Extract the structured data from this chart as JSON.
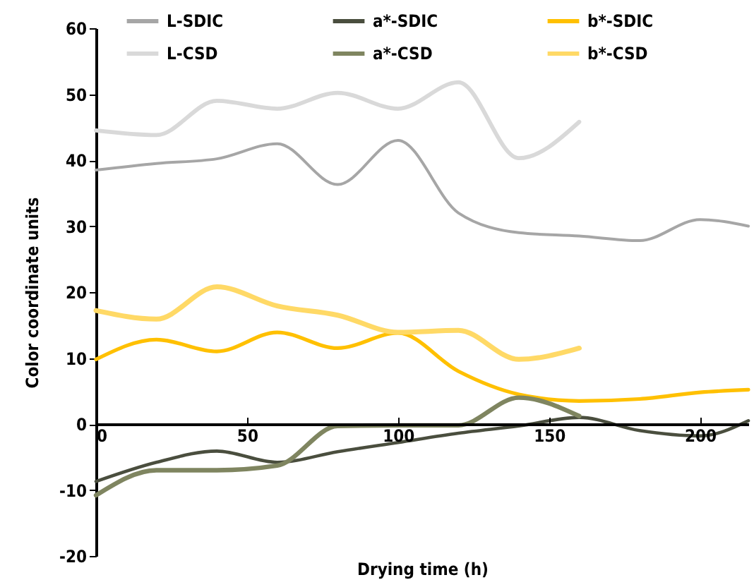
{
  "chart_data": {
    "type": "line",
    "xlabel": "Drying time (h)",
    "ylabel": "Color coordinate units",
    "xlim": [
      0,
      216
    ],
    "ylim": [
      -20,
      60
    ],
    "xticks": [
      0,
      50,
      100,
      150,
      200
    ],
    "yticks": [
      -20,
      -10,
      0,
      10,
      20,
      30,
      40,
      50,
      60
    ],
    "grid": false,
    "legend": "top",
    "series": [
      {
        "name": "L-SDIC",
        "color": "#a6a6a6",
        "x": [
          0,
          20,
          40,
          60,
          80,
          100,
          120,
          140,
          160,
          180,
          200,
          216
        ],
        "values": [
          38.5,
          39.5,
          40.2,
          42.5,
          36.3,
          43,
          32,
          29,
          28.5,
          27.8,
          31,
          30
        ]
      },
      {
        "name": "a*-SDIC",
        "color": "#4a4e3e",
        "x": [
          0,
          20,
          40,
          60,
          80,
          100,
          120,
          140,
          160,
          180,
          200,
          216
        ],
        "values": [
          -8.7,
          -5.8,
          -4.1,
          -5.8,
          -4.2,
          -2.8,
          -1.4,
          -0.3,
          1,
          -1,
          -1.8,
          0.5
        ]
      },
      {
        "name": "b*-SDIC",
        "color": "#ffc000",
        "x": [
          0,
          20,
          40,
          60,
          80,
          100,
          120,
          140,
          160,
          180,
          200,
          216
        ],
        "values": [
          9.8,
          12.8,
          11,
          13.9,
          11.5,
          13.8,
          8,
          4.5,
          3.5,
          3.8,
          4.8,
          5.2
        ]
      },
      {
        "name": "L-CSD",
        "color": "#d9d9d9",
        "x": [
          0,
          20,
          40,
          60,
          80,
          100,
          120,
          140,
          160
        ],
        "values": [
          44.5,
          43.8,
          49,
          47.8,
          50.2,
          47.8,
          51.8,
          40.3,
          45.8
        ]
      },
      {
        "name": "a*-CSD",
        "color": "#7f8560",
        "x": [
          0,
          20,
          40,
          60,
          80,
          100,
          120,
          140,
          160
        ],
        "values": [
          -10.8,
          -7,
          -7,
          -6.3,
          -0.3,
          -0.2,
          -0.2,
          4,
          1.2
        ]
      },
      {
        "name": "b*-CSD",
        "color": "#ffd966",
        "x": [
          0,
          20,
          40,
          60,
          80,
          100,
          120,
          140,
          160
        ],
        "values": [
          17.2,
          15.9,
          20.8,
          17.9,
          16.5,
          13.9,
          14.2,
          9.8,
          11.5
        ]
      }
    ]
  }
}
